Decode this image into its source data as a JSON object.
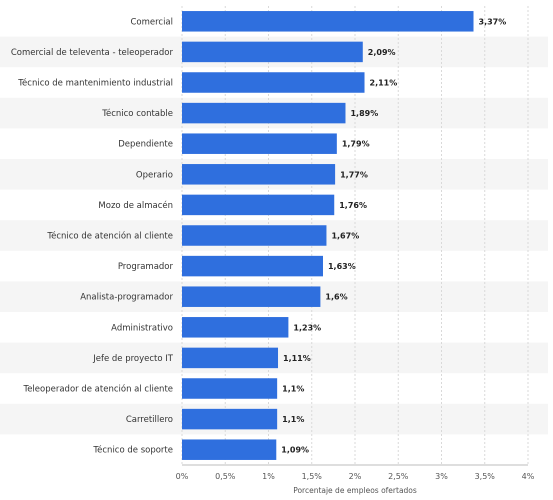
{
  "colors": {
    "bar": "#2f6fde",
    "band": "#f5f5f5",
    "grid": "#d9d9d9",
    "axis": "#bdbdbd"
  },
  "chart_data": {
    "type": "bar",
    "orientation": "horizontal",
    "categories": [
      "Comercial",
      "Comercial de televenta - teleoperador",
      "Técnico de mantenimiento industrial",
      "Técnico contable",
      "Dependiente",
      "Operario",
      "Mozo de almacén",
      "Técnico de atención al cliente",
      "Programador",
      "Analista-programador",
      "Administrativo",
      "Jefe de proyecto IT",
      "Teleoperador de atención al cliente",
      "Carretillero",
      "Técnico de soporte"
    ],
    "values": [
      3.37,
      2.09,
      2.11,
      1.89,
      1.79,
      1.77,
      1.76,
      1.67,
      1.63,
      1.6,
      1.23,
      1.11,
      1.1,
      1.1,
      1.09
    ],
    "value_labels": [
      "3,37%",
      "2,09%",
      "2,11%",
      "1,89%",
      "1,79%",
      "1,77%",
      "1,76%",
      "1,67%",
      "1,63%",
      "1,6%",
      "1,23%",
      "1,11%",
      "1,1%",
      "1,1%",
      "1,09%"
    ],
    "xlim": [
      0,
      4
    ],
    "ticks": [
      0,
      0.5,
      1,
      1.5,
      2,
      2.5,
      3,
      3.5,
      4
    ],
    "tick_labels": [
      "0%",
      "0,5%",
      "1%",
      "1,5%",
      "2%",
      "2,5%",
      "3%",
      "3,5%",
      "4%"
    ],
    "xlabel": "Porcentaje de empleos ofertados",
    "grid": true,
    "alternating_row_bands": true
  }
}
